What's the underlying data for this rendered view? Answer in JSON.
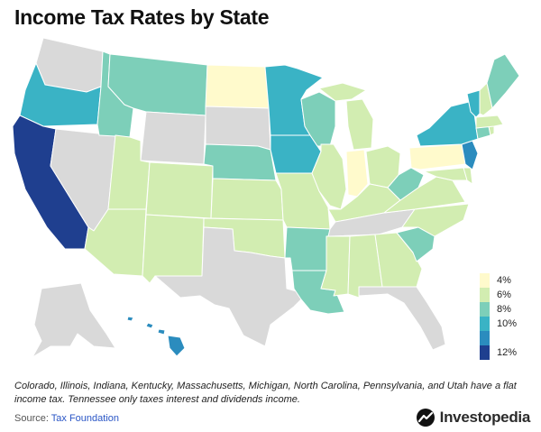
{
  "title": "Income Tax Rates by State",
  "colors": {
    "none": "#d9d9d9",
    "r4": "#fffacc",
    "r6": "#d2edb1",
    "r8": "#7dcfb9",
    "r10": "#3ab3c5",
    "r11": "#2b8cbe",
    "r12": "#1f3f8f",
    "brand": "#111111"
  },
  "legend": {
    "items": [
      {
        "label": "4%",
        "color": "#fffacc"
      },
      {
        "label": "6%",
        "color": "#d2edb1"
      },
      {
        "label": "8%",
        "color": "#7dcfb9"
      },
      {
        "label": "10%",
        "color": "#3ab3c5"
      },
      {
        "label": "",
        "color": "#2b8cbe"
      },
      {
        "label": "12%",
        "color": "#1f3f8f"
      }
    ]
  },
  "note": "Colorado, Illinois, Indiana, Kentucky, Massachusetts, Michigan, North Carolina, Pennsylvania, and Utah have a flat income tax. Tennessee only taxes interest and dividends income.",
  "source": {
    "prefix": "Source: ",
    "name": "Tax Foundation"
  },
  "brand": {
    "name": "Investopedia",
    "icon": "investopedia-logo-icon"
  }
}
